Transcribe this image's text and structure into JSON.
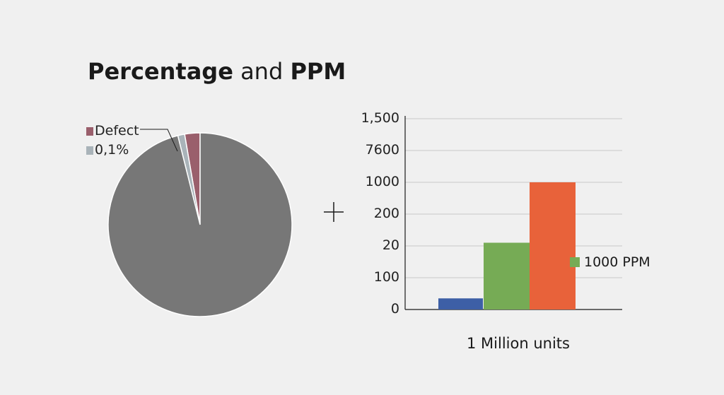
{
  "title": {
    "bold_part_1": "Percentage",
    "regular_part": " and ",
    "bold_part_2": "PPM"
  },
  "colors": {
    "background": "#f0f0f0",
    "pie_main": "#777777",
    "pie_defect": "#9a5f6c",
    "pie_small": "#a9b3b9",
    "bar_blue": "#3d5fa6",
    "bar_green": "#76ab55",
    "bar_orange": "#e8623a",
    "grid": "#c8c8c8",
    "axis": "#1a1a1a"
  },
  "plus_icon": "plus-icon",
  "chart_data": [
    {
      "type": "pie",
      "legend": [
        {
          "label": "Defect",
          "color": "#9a5f6c"
        },
        {
          "label": "0,1%",
          "color": "#a9b3b9"
        }
      ],
      "slices": [
        {
          "label": "Defect",
          "share": 0.027,
          "color": "#9a5f6c"
        },
        {
          "label": "0,1%",
          "share": 0.012,
          "color": "#a9b3b9"
        },
        {
          "label": "",
          "share": 0.961,
          "color": "#777777"
        }
      ]
    },
    {
      "type": "bar",
      "xlabel": "1 Million units",
      "tick_labels": [
        "0",
        "100",
        "20",
        "200",
        "1000",
        "7600",
        "1,500"
      ],
      "legend": [
        {
          "label": "1000 PPM",
          "color": "#76ab55"
        }
      ],
      "bars": [
        {
          "value": 0.35,
          "color": "#3d5fa6"
        },
        {
          "value": 2.1,
          "color": "#76ab55"
        },
        {
          "value": 4.0,
          "color": "#e8623a"
        }
      ],
      "ylim": [
        0,
        6
      ],
      "grid": true
    }
  ]
}
